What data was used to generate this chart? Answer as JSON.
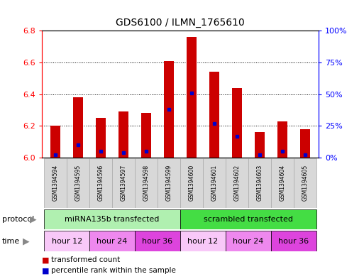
{
  "title": "GDS6100 / ILMN_1765610",
  "samples": [
    "GSM1394594",
    "GSM1394595",
    "GSM1394596",
    "GSM1394597",
    "GSM1394598",
    "GSM1394599",
    "GSM1394600",
    "GSM1394601",
    "GSM1394602",
    "GSM1394603",
    "GSM1394604",
    "GSM1394605"
  ],
  "transformed_counts": [
    6.2,
    6.38,
    6.25,
    6.29,
    6.28,
    6.61,
    6.76,
    6.54,
    6.44,
    6.16,
    6.23,
    6.18
  ],
  "percentile_ranks": [
    2,
    10,
    5,
    4,
    5,
    38,
    51,
    27,
    17,
    2,
    5,
    2
  ],
  "bar_base": 6.0,
  "ylim_left": [
    6.0,
    6.8
  ],
  "ylim_right": [
    0,
    100
  ],
  "yticks_left": [
    6.0,
    6.2,
    6.4,
    6.6,
    6.8
  ],
  "yticks_right": [
    0,
    25,
    50,
    75,
    100
  ],
  "bar_color": "#cc0000",
  "percentile_color": "#0000cc",
  "protocol_groups": [
    {
      "label": "miRNA135b transfected",
      "start": 0,
      "end": 6,
      "color": "#b0f0b0"
    },
    {
      "label": "scrambled transfected",
      "start": 6,
      "end": 12,
      "color": "#44dd44"
    }
  ],
  "time_groups": [
    {
      "label": "hour 12",
      "start": 0,
      "end": 2,
      "color": "#f8c8f8"
    },
    {
      "label": "hour 24",
      "start": 2,
      "end": 4,
      "color": "#ee88ee"
    },
    {
      "label": "hour 36",
      "start": 4,
      "end": 6,
      "color": "#dd44dd"
    },
    {
      "label": "hour 12",
      "start": 6,
      "end": 8,
      "color": "#f8c8f8"
    },
    {
      "label": "hour 24",
      "start": 8,
      "end": 10,
      "color": "#ee88ee"
    },
    {
      "label": "hour 36",
      "start": 10,
      "end": 12,
      "color": "#dd44dd"
    }
  ],
  "sample_bg_color": "#d8d8d8",
  "legend_items": [
    {
      "label": "transformed count",
      "color": "#cc0000"
    },
    {
      "label": "percentile rank within the sample",
      "color": "#0000cc"
    }
  ],
  "bar_width": 0.45,
  "protocol_label": "protocol",
  "time_label": "time",
  "arrow_color": "#888888"
}
